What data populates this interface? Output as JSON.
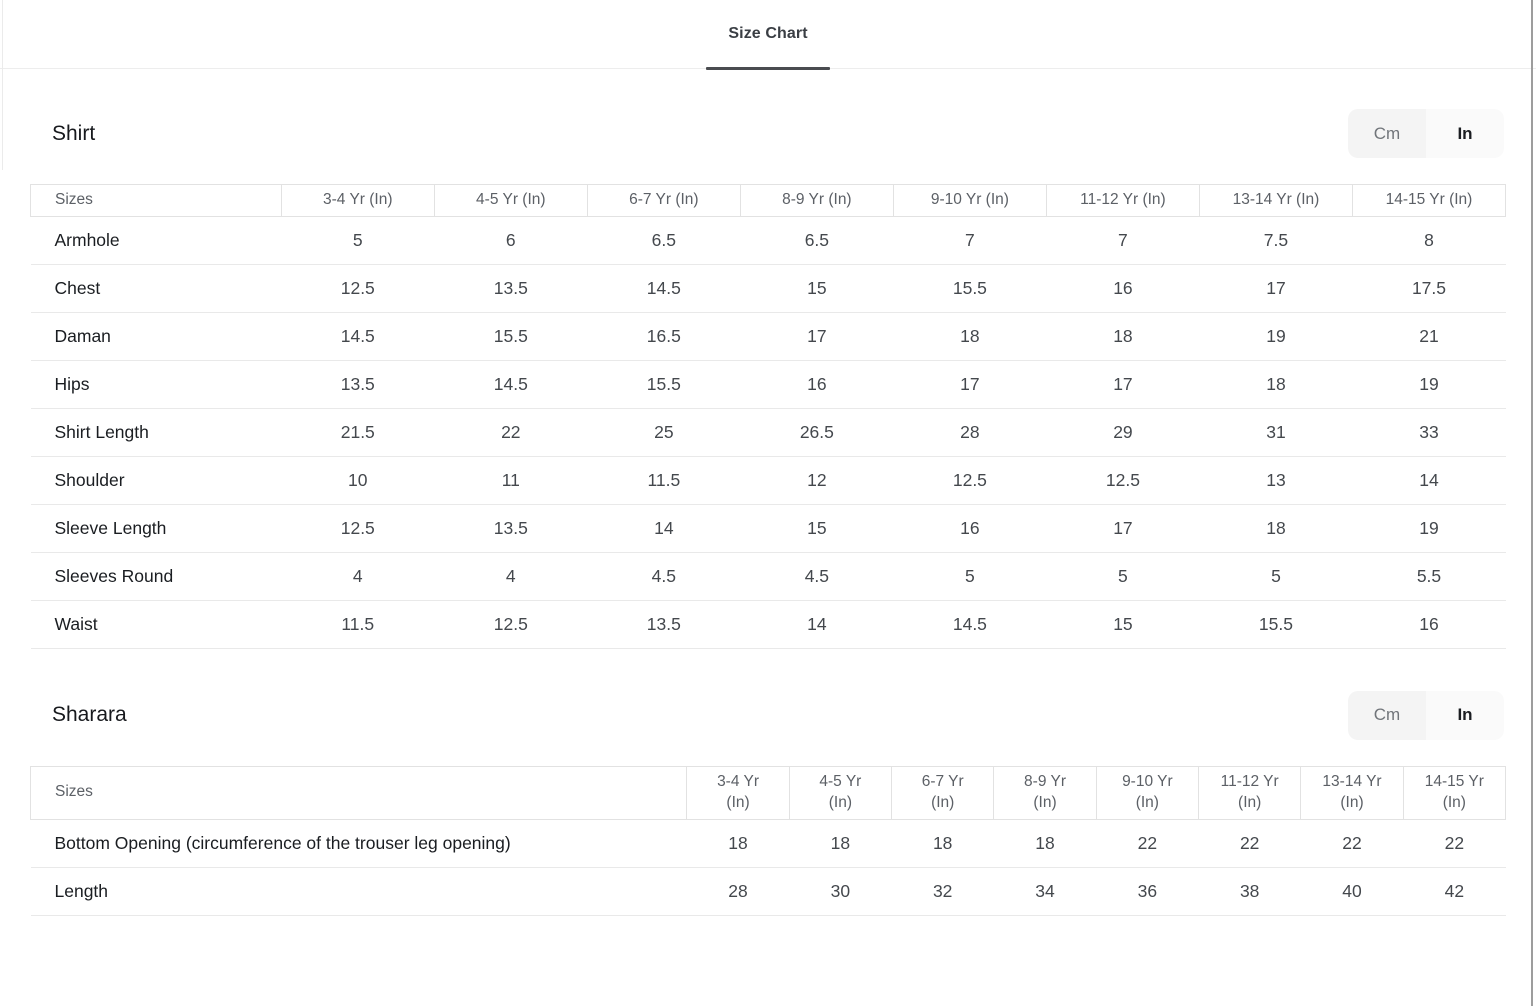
{
  "tab": {
    "label": "Size Chart"
  },
  "unit_toggle": {
    "cm": "Cm",
    "in": "In",
    "selected": "In"
  },
  "colors": {
    "tab_underline": "#4a4c50",
    "toggle_cm_bg": "#f4f4f4",
    "toggle_in_bg": "#fafafa",
    "table_border": "#e2e2e2",
    "header_text": "#5c6066",
    "cell_text": "#44484d"
  },
  "sections": [
    {
      "title": "Shirt",
      "first_column_label": "Sizes",
      "columns": [
        [
          "3-4 Yr (In)"
        ],
        [
          "4-5 Yr (In)"
        ],
        [
          "6-7 Yr (In)"
        ],
        [
          "8-9 Yr (In)"
        ],
        [
          "9-10 Yr (In)"
        ],
        [
          "11-12 Yr (In)"
        ],
        [
          "13-14 Yr (In)"
        ],
        [
          "14-15 Yr (In)"
        ]
      ],
      "rows": [
        {
          "label": "Armhole",
          "values": [
            "5",
            "6",
            "6.5",
            "6.5",
            "7",
            "7",
            "7.5",
            "8"
          ]
        },
        {
          "label": "Chest",
          "values": [
            "12.5",
            "13.5",
            "14.5",
            "15",
            "15.5",
            "16",
            "17",
            "17.5"
          ]
        },
        {
          "label": "Daman",
          "values": [
            "14.5",
            "15.5",
            "16.5",
            "17",
            "18",
            "18",
            "19",
            "21"
          ]
        },
        {
          "label": "Hips",
          "values": [
            "13.5",
            "14.5",
            "15.5",
            "16",
            "17",
            "17",
            "18",
            "19"
          ]
        },
        {
          "label": "Shirt Length",
          "values": [
            "21.5",
            "22",
            "25",
            "26.5",
            "28",
            "29",
            "31",
            "33"
          ]
        },
        {
          "label": "Shoulder",
          "values": [
            "10",
            "11",
            "11.5",
            "12",
            "12.5",
            "12.5",
            "13",
            "14"
          ]
        },
        {
          "label": "Sleeve Length",
          "values": [
            "12.5",
            "13.5",
            "14",
            "15",
            "16",
            "17",
            "18",
            "19"
          ]
        },
        {
          "label": "Sleeves Round",
          "values": [
            "4",
            "4",
            "4.5",
            "4.5",
            "5",
            "5",
            "5",
            "5.5"
          ]
        },
        {
          "label": "Waist",
          "values": [
            "11.5",
            "12.5",
            "13.5",
            "14",
            "14.5",
            "15",
            "15.5",
            "16"
          ]
        }
      ]
    },
    {
      "title": "Sharara",
      "first_column_label": "Sizes",
      "columns": [
        [
          "3-4 Yr",
          "(In)"
        ],
        [
          "4-5 Yr",
          "(In)"
        ],
        [
          "6-7 Yr",
          "(In)"
        ],
        [
          "8-9 Yr",
          "(In)"
        ],
        [
          "9-10 Yr",
          "(In)"
        ],
        [
          "11-12 Yr",
          "(In)"
        ],
        [
          "13-14 Yr",
          "(In)"
        ],
        [
          "14-15 Yr",
          "(In)"
        ]
      ],
      "rows": [
        {
          "label": "Bottom Opening (circumference of the trouser leg opening)",
          "values": [
            "18",
            "18",
            "18",
            "18",
            "22",
            "22",
            "22",
            "22"
          ]
        },
        {
          "label": "Length",
          "values": [
            "28",
            "30",
            "32",
            "34",
            "36",
            "38",
            "40",
            "42"
          ]
        }
      ]
    }
  ]
}
